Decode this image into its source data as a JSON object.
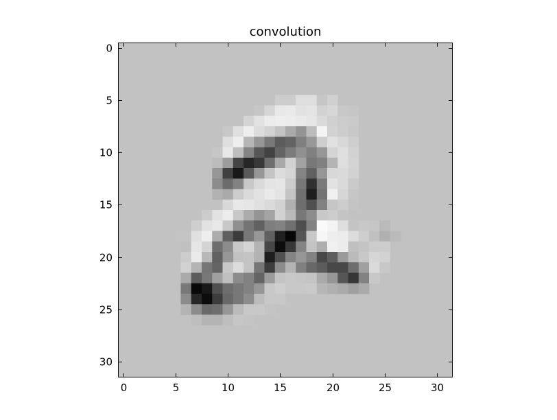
{
  "chart_data": {
    "type": "heatmap",
    "title": "convolution",
    "xlabel": "",
    "ylabel": "",
    "colormap": "gray",
    "xlim": [
      -0.5,
      31.5
    ],
    "ylim": [
      31.5,
      -0.5
    ],
    "xticks": [
      0,
      5,
      10,
      15,
      20,
      25,
      30
    ],
    "yticks": [
      0,
      5,
      10,
      15,
      20,
      25,
      30
    ],
    "grid": false,
    "background_value": 194,
    "rows": 32,
    "cols": 32,
    "pixels": [
      [
        0,
        [
          194,
          194,
          194,
          194,
          194,
          194,
          194,
          194,
          194,
          194,
          194,
          194,
          194,
          194,
          194,
          194,
          194,
          194,
          194,
          194,
          194,
          194,
          194,
          194,
          194,
          194,
          194,
          194,
          194,
          194,
          194,
          194
        ]
      ],
      [
        1,
        [
          194,
          194,
          194,
          194,
          194,
          194,
          194,
          194,
          194,
          194,
          194,
          194,
          194,
          194,
          194,
          194,
          194,
          194,
          194,
          194,
          194,
          194,
          194,
          194,
          194,
          194,
          194,
          194,
          194,
          194,
          194,
          194
        ]
      ],
      [
        2,
        [
          194,
          194,
          194,
          194,
          194,
          194,
          194,
          194,
          194,
          194,
          194,
          194,
          194,
          194,
          194,
          194,
          194,
          194,
          194,
          194,
          194,
          194,
          194,
          194,
          194,
          194,
          194,
          194,
          194,
          194,
          194,
          194
        ]
      ],
      [
        3,
        [
          194,
          194,
          194,
          194,
          194,
          194,
          194,
          194,
          194,
          194,
          194,
          194,
          194,
          194,
          194,
          194,
          194,
          194,
          194,
          194,
          194,
          194,
          194,
          194,
          194,
          194,
          194,
          194,
          194,
          194,
          194,
          194
        ]
      ],
      [
        4,
        [
          194,
          194,
          194,
          194,
          194,
          194,
          194,
          194,
          194,
          194,
          194,
          194,
          194,
          194,
          194,
          194,
          194,
          194,
          194,
          194,
          194,
          194,
          194,
          194,
          194,
          194,
          194,
          194,
          194,
          194,
          194,
          194
        ]
      ],
      [
        5,
        [
          194,
          194,
          194,
          194,
          194,
          194,
          194,
          194,
          194,
          194,
          194,
          194,
          194,
          194,
          194,
          205,
          205,
          222,
          222,
          198,
          208,
          194,
          194,
          194,
          194,
          194,
          194,
          194,
          194,
          194,
          194,
          194
        ]
      ],
      [
        6,
        [
          194,
          194,
          194,
          194,
          194,
          194,
          194,
          194,
          194,
          194,
          194,
          194,
          194,
          198,
          214,
          232,
          234,
          226,
          228,
          210,
          215,
          200,
          198,
          194,
          194,
          194,
          194,
          194,
          194,
          194,
          194,
          194
        ]
      ],
      [
        7,
        [
          194,
          194,
          194,
          194,
          194,
          194,
          194,
          194,
          194,
          194,
          194,
          194,
          212,
          226,
          236,
          238,
          236,
          234,
          230,
          218,
          208,
          204,
          202,
          194,
          194,
          194,
          194,
          194,
          194,
          194,
          194,
          194
        ]
      ],
      [
        8,
        [
          194,
          194,
          194,
          194,
          194,
          194,
          194,
          194,
          194,
          194,
          200,
          224,
          238,
          220,
          210,
          195,
          170,
          148,
          188,
          244,
          210,
          205,
          200,
          194,
          194,
          194,
          194,
          194,
          194,
          194,
          194,
          194
        ]
      ],
      [
        9,
        [
          194,
          194,
          194,
          194,
          194,
          194,
          194,
          194,
          194,
          194,
          222,
          238,
          182,
          150,
          120,
          92,
          100,
          128,
          152,
          206,
          225,
          216,
          206,
          194,
          194,
          194,
          194,
          194,
          194,
          194,
          194,
          194
        ]
      ],
      [
        10,
        [
          194,
          194,
          194,
          194,
          194,
          194,
          194,
          194,
          194,
          198,
          232,
          190,
          132,
          86,
          66,
          100,
          124,
          144,
          128,
          150,
          212,
          222,
          210,
          194,
          194,
          194,
          194,
          194,
          194,
          194,
          194,
          194
        ]
      ],
      [
        11,
        [
          194,
          194,
          194,
          194,
          194,
          194,
          194,
          194,
          194,
          188,
          156,
          68,
          38,
          56,
          110,
          168,
          210,
          162,
          120,
          128,
          180,
          222,
          212,
          194,
          194,
          194,
          194,
          194,
          194,
          194,
          194,
          194
        ]
      ],
      [
        12,
        [
          194,
          194,
          194,
          194,
          194,
          194,
          194,
          194,
          194,
          150,
          64,
          24,
          90,
          150,
          196,
          220,
          214,
          132,
          96,
          150,
          216,
          218,
          210,
          194,
          194,
          194,
          194,
          194,
          194,
          194,
          194,
          194
        ]
      ],
      [
        13,
        [
          194,
          194,
          194,
          194,
          194,
          194,
          194,
          194,
          194,
          140,
          108,
          130,
          200,
          218,
          228,
          230,
          204,
          120,
          48,
          122,
          226,
          218,
          202,
          194,
          194,
          194,
          194,
          194,
          194,
          194,
          194,
          194
        ]
      ],
      [
        14,
        [
          194,
          194,
          194,
          194,
          194,
          194,
          194,
          194,
          194,
          178,
          170,
          204,
          218,
          226,
          234,
          228,
          196,
          112,
          30,
          116,
          240,
          214,
          198,
          194,
          194,
          194,
          194,
          194,
          194,
          194,
          194,
          194
        ]
      ],
      [
        15,
        [
          194,
          194,
          194,
          194,
          194,
          194,
          194,
          194,
          194,
          194,
          216,
          232,
          230,
          224,
          218,
          210,
          176,
          110,
          80,
          130,
          198,
          204,
          196,
          194,
          194,
          194,
          194,
          194,
          194,
          194,
          194,
          194
        ]
      ],
      [
        16,
        [
          194,
          194,
          194,
          194,
          194,
          194,
          194,
          194,
          204,
          226,
          236,
          200,
          172,
          148,
          164,
          210,
          186,
          120,
          140,
          200,
          204,
          196,
          194,
          194,
          194,
          194,
          194,
          194,
          194,
          194,
          194,
          194
        ]
      ],
      [
        17,
        [
          194,
          194,
          194,
          194,
          194,
          194,
          194,
          206,
          226,
          232,
          200,
          144,
          116,
          96,
          126,
          130,
          112,
          78,
          130,
          250,
          244,
          222,
          196,
          200,
          198,
          186,
          194,
          194,
          194,
          194,
          194,
          194
        ]
      ],
      [
        18,
        [
          194,
          194,
          194,
          194,
          194,
          194,
          196,
          224,
          238,
          172,
          96,
          60,
          120,
          152,
          96,
          32,
          6,
          86,
          200,
          246,
          238,
          236,
          220,
          206,
          192,
          176,
          186,
          194,
          194,
          194,
          194,
          194
        ]
      ],
      [
        19,
        [
          194,
          194,
          194,
          194,
          194,
          194,
          192,
          230,
          212,
          110,
          140,
          200,
          212,
          180,
          70,
          12,
          56,
          132,
          196,
          174,
          240,
          236,
          192,
          196,
          204,
          204,
          194,
          194,
          194,
          194,
          194,
          194
        ]
      ],
      [
        20,
        [
          194,
          194,
          194,
          194,
          194,
          194,
          204,
          234,
          184,
          96,
          150,
          194,
          196,
          178,
          30,
          80,
          132,
          150,
          130,
          72,
          94,
          154,
          186,
          200,
          214,
          210,
          194,
          194,
          194,
          194,
          194,
          194
        ]
      ],
      [
        21,
        [
          194,
          194,
          194,
          194,
          194,
          194,
          210,
          180,
          118,
          100,
          200,
          220,
          196,
          118,
          60,
          140,
          180,
          128,
          104,
          92,
          72,
          72,
          110,
          160,
          218,
          200,
          194,
          194,
          194,
          194,
          194,
          194
        ]
      ],
      [
        22,
        [
          194,
          194,
          194,
          194,
          194,
          194,
          170,
          92,
          120,
          160,
          192,
          140,
          130,
          100,
          156,
          196,
          200,
          198,
          196,
          170,
          150,
          86,
          54,
          130,
          200,
          194,
          194,
          194,
          194,
          194,
          194,
          194
        ]
      ],
      [
        23,
        [
          194,
          194,
          194,
          194,
          194,
          194,
          120,
          8,
          24,
          80,
          110,
          120,
          130,
          150,
          200,
          206,
          200,
          200,
          202,
          182,
          176,
          170,
          160,
          170,
          194,
          194,
          194,
          194,
          194,
          194,
          194,
          194
        ]
      ],
      [
        24,
        [
          194,
          194,
          194,
          194,
          194,
          194,
          140,
          38,
          12,
          60,
          104,
          120,
          140,
          188,
          200,
          200,
          194,
          194,
          194,
          194,
          194,
          194,
          194,
          194,
          194,
          194,
          194,
          194,
          194,
          194,
          194,
          194
        ]
      ],
      [
        25,
        [
          194,
          194,
          194,
          194,
          194,
          194,
          180,
          140,
          106,
          110,
          150,
          186,
          200,
          200,
          196,
          194,
          194,
          194,
          194,
          194,
          194,
          194,
          194,
          194,
          194,
          194,
          194,
          194,
          194,
          194,
          194,
          194
        ]
      ],
      [
        26,
        [
          194,
          194,
          194,
          194,
          194,
          194,
          194,
          190,
          180,
          180,
          190,
          198,
          196,
          194,
          194,
          194,
          194,
          194,
          194,
          194,
          194,
          194,
          194,
          194,
          194,
          194,
          194,
          194,
          194,
          194,
          194,
          194
        ]
      ],
      [
        27,
        [
          194,
          194,
          194,
          194,
          194,
          194,
          194,
          194,
          194,
          194,
          194,
          194,
          194,
          194,
          194,
          194,
          194,
          194,
          194,
          194,
          194,
          194,
          194,
          194,
          194,
          194,
          194,
          194,
          194,
          194,
          194,
          194
        ]
      ],
      [
        28,
        [
          194,
          194,
          194,
          194,
          194,
          194,
          194,
          194,
          194,
          194,
          194,
          194,
          194,
          194,
          194,
          194,
          194,
          194,
          194,
          194,
          194,
          194,
          194,
          194,
          194,
          194,
          194,
          194,
          194,
          194,
          194,
          194
        ]
      ],
      [
        29,
        [
          194,
          194,
          194,
          194,
          194,
          194,
          194,
          194,
          194,
          194,
          194,
          194,
          194,
          194,
          194,
          194,
          194,
          194,
          194,
          194,
          194,
          194,
          194,
          194,
          194,
          194,
          194,
          194,
          194,
          194,
          194,
          194
        ]
      ],
      [
        30,
        [
          194,
          194,
          194,
          194,
          194,
          194,
          194,
          194,
          194,
          194,
          194,
          194,
          194,
          194,
          194,
          194,
          194,
          194,
          194,
          194,
          194,
          194,
          194,
          194,
          194,
          194,
          194,
          194,
          194,
          194,
          194,
          194
        ]
      ],
      [
        31,
        [
          194,
          194,
          194,
          194,
          194,
          194,
          194,
          194,
          194,
          194,
          194,
          194,
          194,
          194,
          194,
          194,
          194,
          194,
          194,
          194,
          194,
          194,
          194,
          194,
          194,
          194,
          194,
          194,
          194,
          194,
          194,
          194
        ]
      ]
    ]
  }
}
